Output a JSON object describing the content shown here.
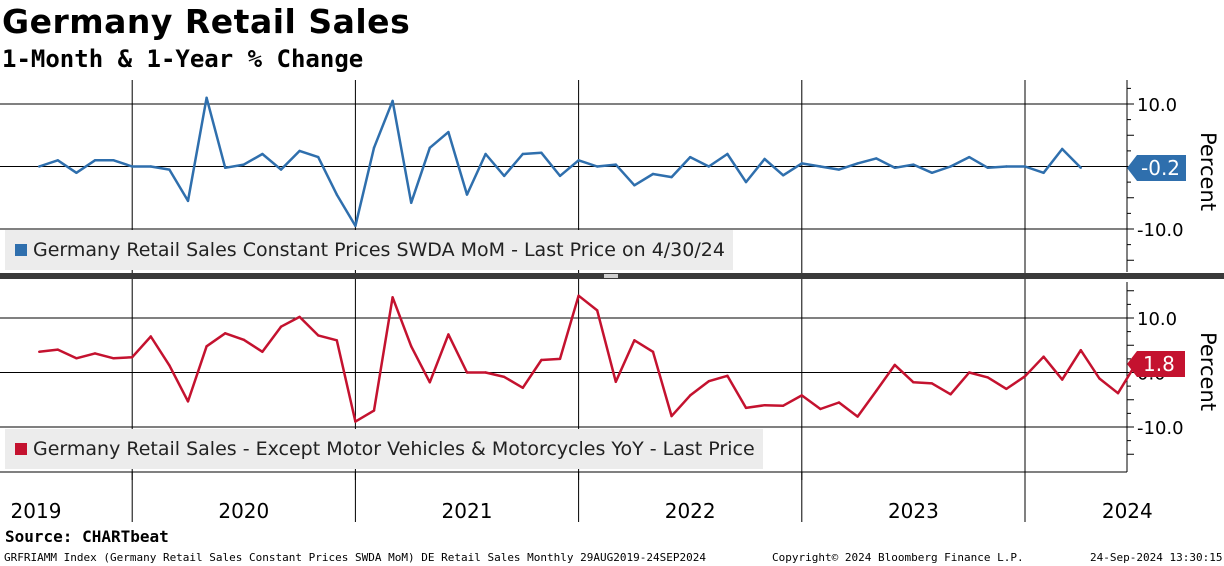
{
  "header": {
    "title": "Germany Retail Sales",
    "subtitle": "1-Month & 1-Year % Change"
  },
  "footer": {
    "source": "Source: CHARTbeat",
    "index_info": "GRFRIAMM Index (Germany Retail Sales Constant Prices SWDA MoM) DE Retail Sales  Monthly 29AUG2019-24SEP2024",
    "copyright": "Copyright© 2024 Bloomberg Finance L.P.",
    "timestamp": "24-Sep-2024 13:30:15"
  },
  "colors": {
    "top_series": "#2f6fad",
    "bottom_series": "#c4122f",
    "legend_bg": "#ececec"
  },
  "chart_data": [
    {
      "type": "line",
      "panel": "top",
      "series": [
        {
          "name": "Germany Retail Sales Constant Prices SWDA MoM - Last Price on 4/30/24",
          "x": [
            "2019-08",
            "2019-09",
            "2019-10",
            "2019-11",
            "2019-12",
            "2020-01",
            "2020-02",
            "2020-03",
            "2020-04",
            "2020-05",
            "2020-06",
            "2020-07",
            "2020-08",
            "2020-09",
            "2020-10",
            "2020-11",
            "2020-12",
            "2021-01",
            "2021-02",
            "2021-03",
            "2021-04",
            "2021-05",
            "2021-06",
            "2021-07",
            "2021-08",
            "2021-09",
            "2021-10",
            "2021-11",
            "2021-12",
            "2022-01",
            "2022-02",
            "2022-03",
            "2022-04",
            "2022-05",
            "2022-06",
            "2022-07",
            "2022-08",
            "2022-09",
            "2022-10",
            "2022-11",
            "2022-12",
            "2023-01",
            "2023-02",
            "2023-03",
            "2023-04",
            "2023-05",
            "2023-06",
            "2023-07",
            "2023-08",
            "2023-09",
            "2023-10",
            "2023-11",
            "2023-12",
            "2024-01",
            "2024-02",
            "2024-03",
            "2024-04"
          ],
          "values": [
            0.0,
            1.0,
            -1.0,
            1.0,
            1.0,
            0.0,
            0.0,
            -0.5,
            -5.5,
            11.0,
            -0.2,
            0.3,
            2.0,
            -0.5,
            2.5,
            1.5,
            -4.5,
            -9.5,
            3.0,
            10.5,
            -5.8,
            3.0,
            5.5,
            -4.5,
            2.0,
            -1.5,
            2.0,
            2.2,
            -1.5,
            1.0,
            0.0,
            0.3,
            -3.0,
            -1.2,
            -1.7,
            1.5,
            0.0,
            2.0,
            -2.5,
            1.2,
            -1.4,
            0.5,
            0.0,
            -0.5,
            0.5,
            1.3,
            -0.2,
            0.3,
            -1.0,
            0.0,
            1.5,
            -0.2,
            0.0,
            0.0,
            -1.0,
            2.8,
            -0.2
          ]
        }
      ],
      "ylim": [
        -10,
        10
      ],
      "y_ticks": [
        "10.0",
        "-10.0"
      ],
      "ylabel": "Percent",
      "last_value_label": "-0.2"
    },
    {
      "type": "line",
      "panel": "bottom",
      "series": [
        {
          "name": "Germany Retail Sales - Except Motor Vehicles & Motorcycles YoY - Last Price",
          "x": [
            "2019-08",
            "2019-09",
            "2019-10",
            "2019-11",
            "2019-12",
            "2020-01",
            "2020-02",
            "2020-03",
            "2020-04",
            "2020-05",
            "2020-06",
            "2020-07",
            "2020-08",
            "2020-09",
            "2020-10",
            "2020-11",
            "2020-12",
            "2021-01",
            "2021-02",
            "2021-03",
            "2021-04",
            "2021-05",
            "2021-06",
            "2021-07",
            "2021-08",
            "2021-09",
            "2021-10",
            "2021-11",
            "2021-12",
            "2022-01",
            "2022-02",
            "2022-03",
            "2022-04",
            "2022-05",
            "2022-06",
            "2022-07",
            "2022-08",
            "2022-09",
            "2022-10",
            "2022-11",
            "2022-12",
            "2023-01",
            "2023-02",
            "2023-03",
            "2023-04",
            "2023-05",
            "2023-06",
            "2023-07",
            "2023-08",
            "2023-09",
            "2023-10",
            "2023-11",
            "2023-12",
            "2024-01",
            "2024-02",
            "2024-03",
            "2024-04",
            "2024-05",
            "2024-06",
            "2024-07"
          ],
          "values": [
            3.8,
            4.2,
            2.6,
            3.5,
            2.6,
            2.8,
            6.6,
            1.3,
            -5.3,
            4.8,
            7.2,
            6.0,
            3.8,
            8.4,
            10.2,
            6.8,
            5.9,
            -9.0,
            -7.0,
            13.8,
            4.8,
            -1.8,
            7.0,
            0.0,
            0.0,
            -0.8,
            -2.8,
            2.3,
            2.5,
            14.1,
            11.4,
            -1.7,
            5.9,
            3.8,
            -8.0,
            -4.2,
            -1.6,
            -0.6,
            -6.5,
            -6.0,
            -6.1,
            -4.2,
            -6.7,
            -5.5,
            -8.1,
            -3.4,
            1.4,
            -1.8,
            -2.0,
            -4.0,
            0.0,
            -0.9,
            -3.0,
            -0.7,
            2.9,
            -1.3,
            4.1,
            -1.1,
            -3.8,
            1.8
          ]
        }
      ],
      "ylim": [
        -10,
        10
      ],
      "y_ticks": [
        "10.0",
        "0.0",
        "-10.0"
      ],
      "ylabel": "Percent",
      "last_value_label": "1.8"
    }
  ],
  "x_axis": {
    "year_labels": [
      "2019",
      "2020",
      "2021",
      "2022",
      "2023",
      "2024"
    ]
  }
}
